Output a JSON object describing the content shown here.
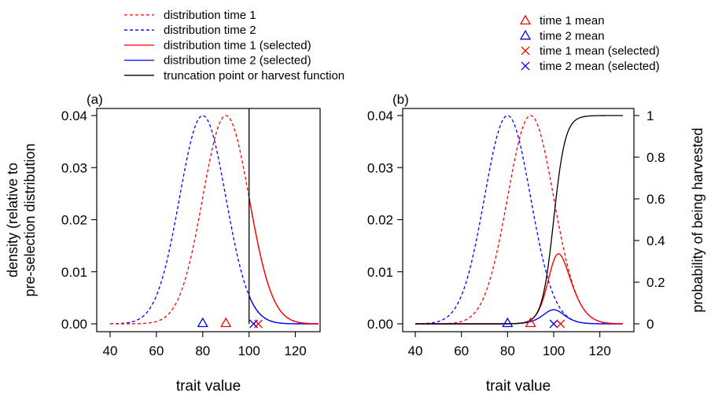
{
  "legend_left": [
    {
      "label": "distribution time 1",
      "color": "#ff0000",
      "dash": true
    },
    {
      "label": "distribution time 2",
      "color": "#0000ff",
      "dash": true
    },
    {
      "label": "distribution time 1 (selected)",
      "color": "#ff0000",
      "dash": false
    },
    {
      "label": "distribution time 2 (selected)",
      "color": "#0000ff",
      "dash": false
    },
    {
      "label": "truncation point or harvest function",
      "color": "#000000",
      "dash": false
    }
  ],
  "legend_right": [
    {
      "label": "time 1 mean",
      "color": "#ff0000",
      "marker": "triangle"
    },
    {
      "label": "time 2 mean",
      "color": "#0000ff",
      "marker": "triangle"
    },
    {
      "label": "time 1 mean (selected)",
      "color": "#ff0000",
      "marker": "cross"
    },
    {
      "label": "time 2 mean (selected)",
      "color": "#0000ff",
      "marker": "cross"
    }
  ],
  "chart_data": [
    {
      "type": "line",
      "panel_label": "(a)",
      "xlabel": "trait value",
      "ylabel": "density (relative to\npre-selection distribution",
      "xlim": [
        40,
        130
      ],
      "ylim": [
        0,
        0.04
      ],
      "xticks": [
        40,
        60,
        80,
        100,
        120
      ],
      "yticks": [
        "0.00",
        "0.01",
        "0.02",
        "0.03",
        "0.04"
      ],
      "distributions": {
        "time1_mean": 90,
        "time2_mean": 80,
        "sd": 10,
        "peak_density": 0.04
      },
      "truncation_point": 100,
      "means": {
        "time1": 90,
        "time2": 80,
        "time1_selected": 104,
        "time2_selected": 102
      }
    },
    {
      "type": "line",
      "panel_label": "(b)",
      "xlabel": "trait value",
      "ylabel_right": "probability of being harvested",
      "xlim": [
        40,
        130
      ],
      "ylim": [
        0,
        0.04
      ],
      "ylim_right": [
        0,
        1
      ],
      "xticks": [
        40,
        60,
        80,
        100,
        120
      ],
      "yticks": [
        "0.00",
        "0.01",
        "0.02",
        "0.03",
        "0.04"
      ],
      "yticks_right": [
        "0",
        "0.2",
        "0.4",
        "0.6",
        "0.8",
        "1"
      ],
      "distributions": {
        "time1_mean": 90,
        "time2_mean": 80,
        "sd": 10,
        "peak_density": 0.04
      },
      "harvest_function": {
        "type": "logistic",
        "midpoint": 100,
        "scale": 2.5
      },
      "means": {
        "time1": 90,
        "time2": 80,
        "time1_selected": 103,
        "time2_selected": 100
      }
    }
  ]
}
